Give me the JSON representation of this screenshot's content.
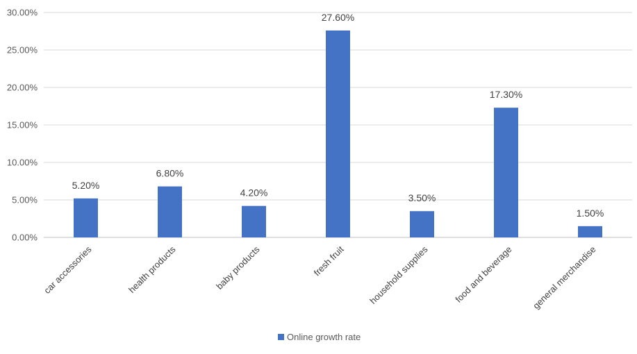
{
  "chart_data": {
    "type": "bar",
    "title": "",
    "xlabel": "",
    "ylabel": "",
    "categories": [
      "car accessories",
      "health products",
      "baby products",
      "fresh fruit",
      "household supplies",
      "food and beverage",
      "general merchandise"
    ],
    "series": [
      {
        "name": "Online growth rate",
        "values": [
          5.2,
          6.8,
          4.2,
          27.6,
          3.5,
          17.3,
          1.5
        ],
        "value_labels": [
          "5.20%",
          "6.80%",
          "4.20%",
          "27.60%",
          "3.50%",
          "17.30%",
          "1.50%"
        ]
      }
    ],
    "ylim": [
      0,
      30
    ],
    "y_ticks": [
      0,
      5,
      10,
      15,
      20,
      25,
      30
    ],
    "y_tick_labels": [
      "0.00%",
      "5.00%",
      "10.00%",
      "15.00%",
      "20.00%",
      "25.00%",
      "30.00%"
    ],
    "grid": true,
    "legend_position": "bottom-center",
    "colors": {
      "bar": "#4472c4",
      "grid": "#d9d9d9",
      "axis": "#bfbfbf"
    }
  }
}
